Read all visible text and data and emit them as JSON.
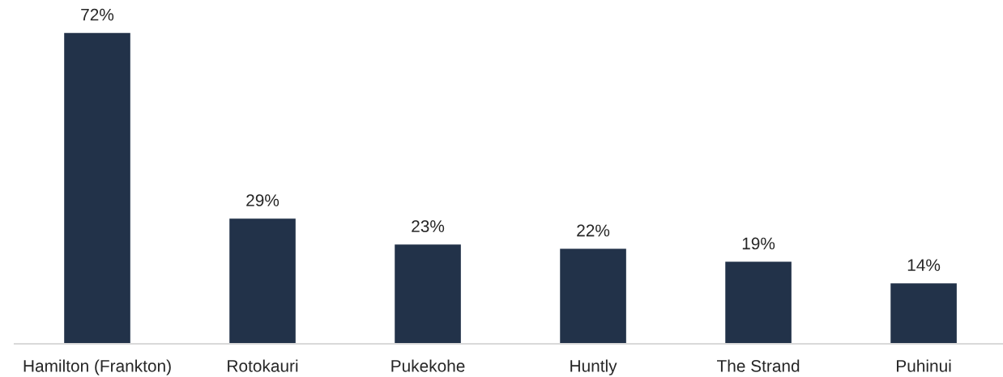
{
  "chart_data": {
    "type": "bar",
    "categories": [
      "Hamilton (Frankton)",
      "Rotokauri",
      "Pukekohe",
      "Huntly",
      "The Strand",
      "Puhinui"
    ],
    "values": [
      72,
      29,
      23,
      22,
      19,
      14
    ],
    "value_labels": [
      "72%",
      "29%",
      "23%",
      "22%",
      "19%",
      "14%"
    ],
    "color": "#223249"
  }
}
